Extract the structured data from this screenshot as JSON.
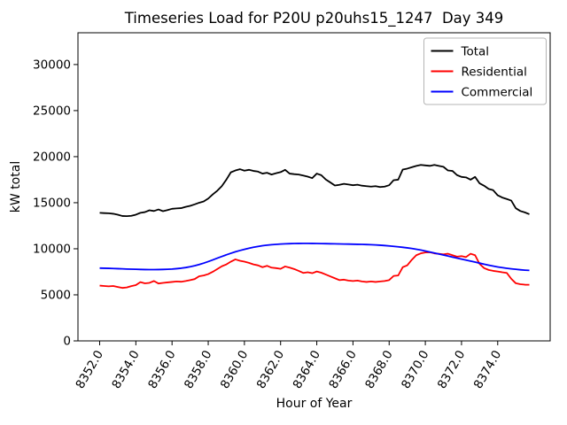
{
  "chart_data": {
    "type": "line",
    "title": "Timeseries Load for P20U p20uhs15_1247  Day 349",
    "xlabel": "Hour of Year",
    "ylabel": "kW total",
    "xlim": [
      8350.8,
      8376.9
    ],
    "ylim": [
      0,
      33450
    ],
    "grid": false,
    "legend_position": "upper right",
    "x_ticks": [
      8352,
      8354,
      8356,
      8358,
      8360,
      8362,
      8364,
      8366,
      8368,
      8370,
      8372,
      8374
    ],
    "x_tick_labels": [
      "8352.0",
      "8354.0",
      "8356.0",
      "8358.0",
      "8360.0",
      "8362.0",
      "8364.0",
      "8366.0",
      "8368.0",
      "8370.0",
      "8372.0",
      "8374.0"
    ],
    "y_ticks": [
      0,
      5000,
      10000,
      15000,
      20000,
      25000,
      30000
    ],
    "y_tick_labels": [
      "0",
      "5000",
      "10000",
      "15000",
      "20000",
      "25000",
      "30000"
    ],
    "x": [
      8352.0,
      8352.25,
      8352.5,
      8352.75,
      8353.0,
      8353.25,
      8353.5,
      8353.75,
      8354.0,
      8354.25,
      8354.5,
      8354.75,
      8355.0,
      8355.25,
      8355.5,
      8355.75,
      8356.0,
      8356.25,
      8356.5,
      8356.75,
      8357.0,
      8357.25,
      8357.5,
      8357.75,
      8358.0,
      8358.25,
      8358.5,
      8358.75,
      8359.0,
      8359.25,
      8359.5,
      8359.75,
      8360.0,
      8360.25,
      8360.5,
      8360.75,
      8361.0,
      8361.25,
      8361.5,
      8361.75,
      8362.0,
      8362.25,
      8362.5,
      8362.75,
      8363.0,
      8363.25,
      8363.5,
      8363.75,
      8364.0,
      8364.25,
      8364.5,
      8364.75,
      8365.0,
      8365.25,
      8365.5,
      8365.75,
      8366.0,
      8366.25,
      8366.5,
      8366.75,
      8367.0,
      8367.25,
      8367.5,
      8367.75,
      8368.0,
      8368.25,
      8368.5,
      8368.75,
      8369.0,
      8369.25,
      8369.5,
      8369.75,
      8370.0,
      8370.25,
      8370.5,
      8370.75,
      8371.0,
      8371.25,
      8371.5,
      8371.75,
      8372.0,
      8372.25,
      8372.5,
      8372.75,
      8373.0,
      8373.25,
      8373.5,
      8373.75,
      8374.0,
      8374.25,
      8374.5,
      8374.75,
      8375.0,
      8375.25,
      8375.5,
      8375.75
    ],
    "series": [
      {
        "name": "Total",
        "color": "#000000",
        "values": [
          13900,
          13870,
          13850,
          13800,
          13700,
          13560,
          13540,
          13580,
          13700,
          13900,
          13980,
          14180,
          14100,
          14270,
          14080,
          14200,
          14340,
          14380,
          14410,
          14550,
          14660,
          14820,
          15000,
          15140,
          15450,
          15900,
          16300,
          16800,
          17500,
          18300,
          18500,
          18640,
          18480,
          18570,
          18450,
          18380,
          18160,
          18250,
          18060,
          18200,
          18320,
          18570,
          18160,
          18100,
          18060,
          17950,
          17830,
          17670,
          18160,
          17990,
          17520,
          17200,
          16870,
          16940,
          17050,
          16980,
          16900,
          16950,
          16850,
          16800,
          16750,
          16800,
          16700,
          16750,
          16900,
          17450,
          17500,
          18600,
          18700,
          18850,
          19000,
          19100,
          19050,
          19000,
          19100,
          19000,
          18900,
          18500,
          18450,
          18000,
          17800,
          17750,
          17500,
          17800,
          17100,
          16840,
          16500,
          16360,
          15800,
          15560,
          15400,
          15230,
          14400,
          14100,
          13950,
          13750
        ]
      },
      {
        "name": "Residential",
        "color": "#ff0000",
        "values": [
          6000,
          5960,
          5920,
          5960,
          5850,
          5750,
          5800,
          5950,
          6060,
          6380,
          6250,
          6300,
          6500,
          6230,
          6300,
          6350,
          6400,
          6450,
          6420,
          6500,
          6600,
          6710,
          7020,
          7100,
          7250,
          7500,
          7800,
          8100,
          8300,
          8600,
          8850,
          8700,
          8600,
          8470,
          8300,
          8200,
          8000,
          8150,
          7950,
          7900,
          7820,
          8080,
          7950,
          7800,
          7600,
          7380,
          7450,
          7350,
          7535,
          7400,
          7200,
          7000,
          6800,
          6600,
          6650,
          6550,
          6500,
          6550,
          6450,
          6400,
          6450,
          6400,
          6450,
          6500,
          6600,
          7050,
          7100,
          8000,
          8200,
          8800,
          9300,
          9500,
          9600,
          9620,
          9500,
          9450,
          9400,
          9460,
          9300,
          9140,
          9200,
          9100,
          9460,
          9300,
          8350,
          7900,
          7700,
          7600,
          7535,
          7450,
          7380,
          6740,
          6255,
          6150,
          6100,
          6090
        ]
      },
      {
        "name": "Commercial",
        "color": "#0000ff",
        "values": [
          7900,
          7890,
          7875,
          7860,
          7840,
          7820,
          7800,
          7785,
          7770,
          7755,
          7745,
          7740,
          7740,
          7745,
          7755,
          7775,
          7800,
          7840,
          7890,
          7960,
          8050,
          8160,
          8290,
          8440,
          8610,
          8790,
          8980,
          9160,
          9340,
          9510,
          9670,
          9810,
          9940,
          10060,
          10160,
          10250,
          10330,
          10390,
          10440,
          10480,
          10510,
          10535,
          10555,
          10570,
          10580,
          10585,
          10585,
          10580,
          10575,
          10565,
          10555,
          10545,
          10535,
          10525,
          10515,
          10505,
          10495,
          10485,
          10475,
          10460,
          10440,
          10415,
          10385,
          10350,
          10310,
          10265,
          10215,
          10160,
          10100,
          10030,
          9950,
          9860,
          9760,
          9650,
          9540,
          9430,
          9320,
          9210,
          9100,
          8990,
          8880,
          8770,
          8660,
          8550,
          8440,
          8330,
          8220,
          8120,
          8030,
          7950,
          7880,
          7820,
          7770,
          7720,
          7680,
          7650
        ]
      }
    ]
  }
}
